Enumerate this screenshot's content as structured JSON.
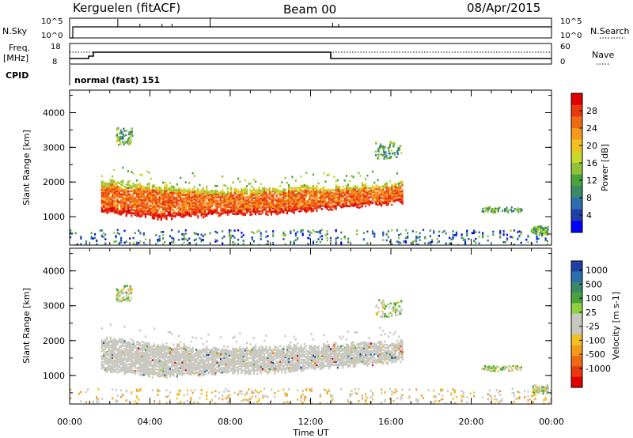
{
  "header": {
    "station": "Kerguelen (fitACF)",
    "beam": "Beam 00",
    "date": "08/Apr/2015"
  },
  "panels_top": {
    "nsky_label": "N.Sky",
    "nsearch_label": "N.Search",
    "nsky_ticks": [
      "10^5",
      "10^0"
    ],
    "nsearch_ticks": [
      "10^5",
      "10^0"
    ],
    "freq_label_1": "Freq.",
    "freq_label_2": "[MHz]",
    "freq_ticks": [
      "18",
      "8"
    ],
    "nave_label": "Nave",
    "nave_ticks": [
      "60",
      "0"
    ],
    "cpid_label": "CPID",
    "cpid_text": "normal (fast) 151"
  },
  "colors": {
    "power_scale": [
      "#0000ff",
      "#1f3fa6",
      "#2b6fb0",
      "#3a8a6a",
      "#4aa33a",
      "#8fc23a",
      "#c9d62a",
      "#f0c020",
      "#f59a1a",
      "#f06a14",
      "#e8380e",
      "#e00000"
    ],
    "velocity_scale": [
      "#1f3fa6",
      "#2b6fb0",
      "#3a8a6a",
      "#4aa33a",
      "#8fd040",
      "#c8c8c0",
      "#c8c8c0",
      "#f0c020",
      "#f59a1a",
      "#f06a14",
      "#e8380e",
      "#e00000"
    ]
  },
  "chart_data": [
    {
      "type": "heatmap",
      "title": "",
      "xlabel": "",
      "ylabel": "Slant Range [km]",
      "xlim": [
        0,
        24
      ],
      "ylim": [
        180,
        4650
      ],
      "y_ticks": [
        "1000",
        "2000",
        "3000",
        "4000"
      ],
      "colorbar_label": "Power [dB]",
      "colorbar_ticks": [
        "4",
        "8",
        "12",
        "16",
        "20",
        "24",
        "28"
      ],
      "echo_band": {
        "start_hour": 1.5,
        "end_hour": 16.6,
        "lower_km": [
          1200,
          1000,
          1100,
          1150,
          1300,
          1450
        ],
        "upper_km": [
          2100,
          1900,
          1800,
          1850,
          1900,
          2000
        ]
      }
    },
    {
      "type": "heatmap",
      "title": "",
      "xlabel": "Time UT",
      "ylabel": "Slant Range [km]",
      "xlim": [
        0,
        24
      ],
      "ylim": [
        180,
        4650
      ],
      "x_ticks": [
        "00:00",
        "04:00",
        "08:00",
        "12:00",
        "16:00",
        "20:00",
        "00:00"
      ],
      "y_ticks": [
        "1000",
        "2000",
        "3000",
        "4000"
      ],
      "colorbar_label": "Velocity [m s-1]",
      "colorbar_ticks": [
        "1000",
        "500",
        "100",
        "25",
        "-25",
        "-100",
        "-500",
        "-1000"
      ]
    }
  ]
}
